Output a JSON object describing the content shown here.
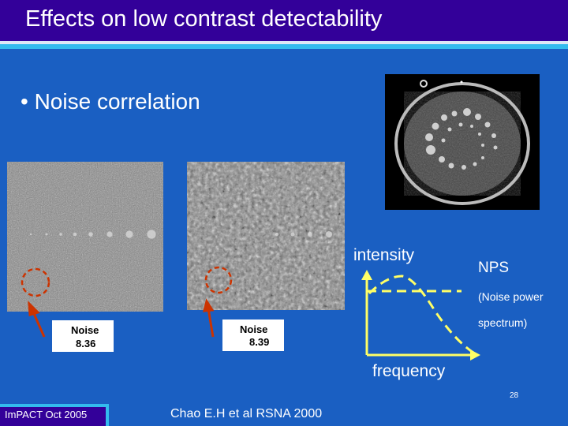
{
  "slide": {
    "title": "Effects on low contrast detectability",
    "bullet": "•  Noise correlation",
    "images": [
      {
        "name": "uncorrelated-noise-phantom",
        "noise_label": "Noise",
        "noise_value": "8.36"
      },
      {
        "name": "correlated-noise-phantom",
        "noise_label": "Noise",
        "noise_value": "8.39"
      }
    ],
    "nps_chart": {
      "ylabel": "intensity",
      "xlabel": "frequency",
      "title": "NPS",
      "subtitle_line1": "(Noise power",
      "subtitle_line2": "spectrum)"
    },
    "footer": "ImPACT Oct 2005",
    "citation": "Chao E.H et al RSNA 2000",
    "page_number": "28"
  },
  "colors": {
    "background": "#1a5fc2",
    "title_bar": "#330099",
    "accent_stripe": "#33bbee",
    "arrow": "#cc3300",
    "circle": "#cc3300",
    "nps_axis": "#ffff66",
    "nps_curve": "#ffff66"
  }
}
